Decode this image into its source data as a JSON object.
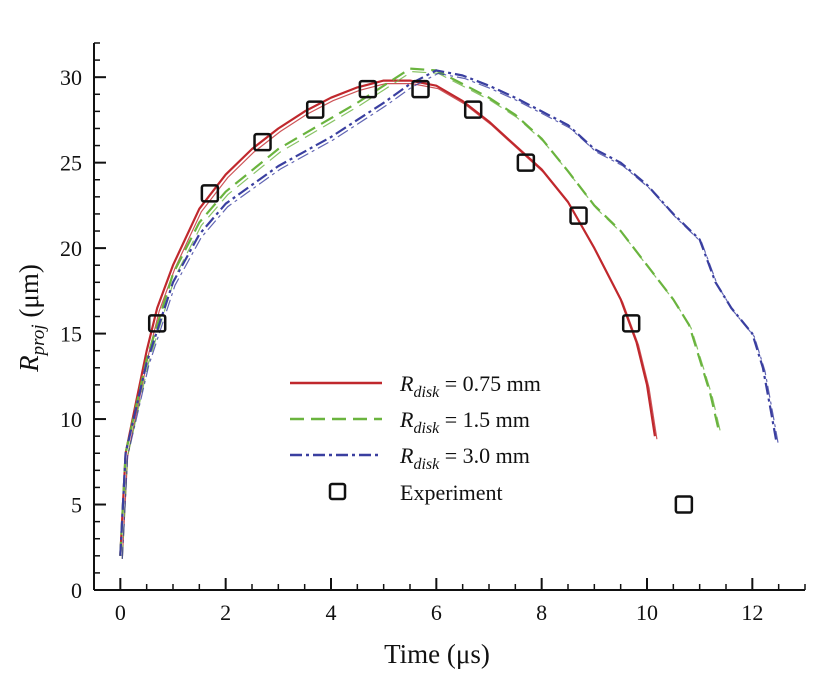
{
  "chart_data": {
    "type": "line",
    "xlabel": "Time (μs)",
    "ylabel": {
      "main": "R",
      "sub": "proj",
      "unit": " (μm)"
    },
    "xlim": [
      -0.5,
      13
    ],
    "ylim": [
      0,
      32
    ],
    "xticks": [
      0,
      2,
      4,
      6,
      8,
      10,
      12
    ],
    "yticks": [
      0,
      5,
      10,
      15,
      20,
      25,
      30
    ],
    "grid": false,
    "legend_position": "bottom-center",
    "series": [
      {
        "name": "R_disk = 0.75 mm",
        "label_main": "R",
        "label_sub": "disk",
        "label_rest": " = 0.75 mm",
        "color": "#c0282d",
        "style": "solid",
        "x": [
          0,
          0.1,
          0.3,
          0.5,
          0.7,
          1,
          1.5,
          2,
          2.5,
          3,
          3.5,
          4,
          4.5,
          5,
          5.5,
          6,
          6.5,
          7,
          7.5,
          8,
          8.5,
          9,
          9.5,
          9.8,
          10,
          10.15
        ],
        "y": [
          2,
          8,
          11,
          14,
          16.5,
          19,
          22.3,
          24.3,
          25.8,
          27,
          28,
          28.8,
          29.4,
          29.8,
          29.8,
          29.5,
          28.6,
          27.4,
          26,
          24.6,
          22.7,
          20,
          17,
          14.5,
          12,
          9
        ]
      },
      {
        "name": "R_disk = 1.5 mm",
        "label_main": "R",
        "label_sub": "disk",
        "label_rest": " = 1.5 mm",
        "color": "#6ab43e",
        "style": "dashed",
        "x": [
          0,
          0.1,
          0.5,
          1,
          1.5,
          2,
          3,
          4,
          4.5,
          5,
          5.5,
          6,
          6.5,
          7,
          7.5,
          8,
          8.5,
          9,
          9.5,
          10,
          10.5,
          10.8,
          11,
          11.2,
          11.35
        ],
        "y": [
          2,
          8,
          13.5,
          18.5,
          21.5,
          23.3,
          25.8,
          27.6,
          28.5,
          29.5,
          30.5,
          30.4,
          29.6,
          28.8,
          27.8,
          26.4,
          24.5,
          22.5,
          21,
          19,
          17,
          15.5,
          13.5,
          11.5,
          9.5
        ]
      },
      {
        "name": "R_disk = 3.0 mm",
        "label_main": "R",
        "label_sub": "disk",
        "label_rest": " = 3.0 mm",
        "color": "#3a3fa0",
        "style": "dashdot",
        "x": [
          0,
          0.1,
          0.5,
          1,
          1.5,
          2,
          3,
          4,
          5,
          5.5,
          6,
          6.5,
          7,
          7.5,
          8,
          8.5,
          9,
          9.5,
          10,
          10.5,
          11,
          11.3,
          11.6,
          12,
          12.2,
          12.35,
          12.45
        ],
        "y": [
          2,
          8,
          13.3,
          18,
          20.8,
          22.6,
          24.8,
          26.5,
          28.5,
          29.6,
          30.4,
          30.1,
          29.5,
          28.8,
          28,
          27.2,
          25.8,
          25,
          23.7,
          22,
          20.5,
          18,
          16.5,
          15,
          13,
          10.5,
          8.8
        ]
      },
      {
        "name": "Experiment",
        "color": "#111111",
        "style": "square-marker",
        "x": [
          0.7,
          1.7,
          2.7,
          3.7,
          4.7,
          5.7,
          6.7,
          7.7,
          8.7,
          9.7,
          10.7
        ],
        "y": [
          15.6,
          23.2,
          26.2,
          28.1,
          29.3,
          29.3,
          28.1,
          25,
          21.9,
          15.6,
          5
        ]
      }
    ]
  }
}
